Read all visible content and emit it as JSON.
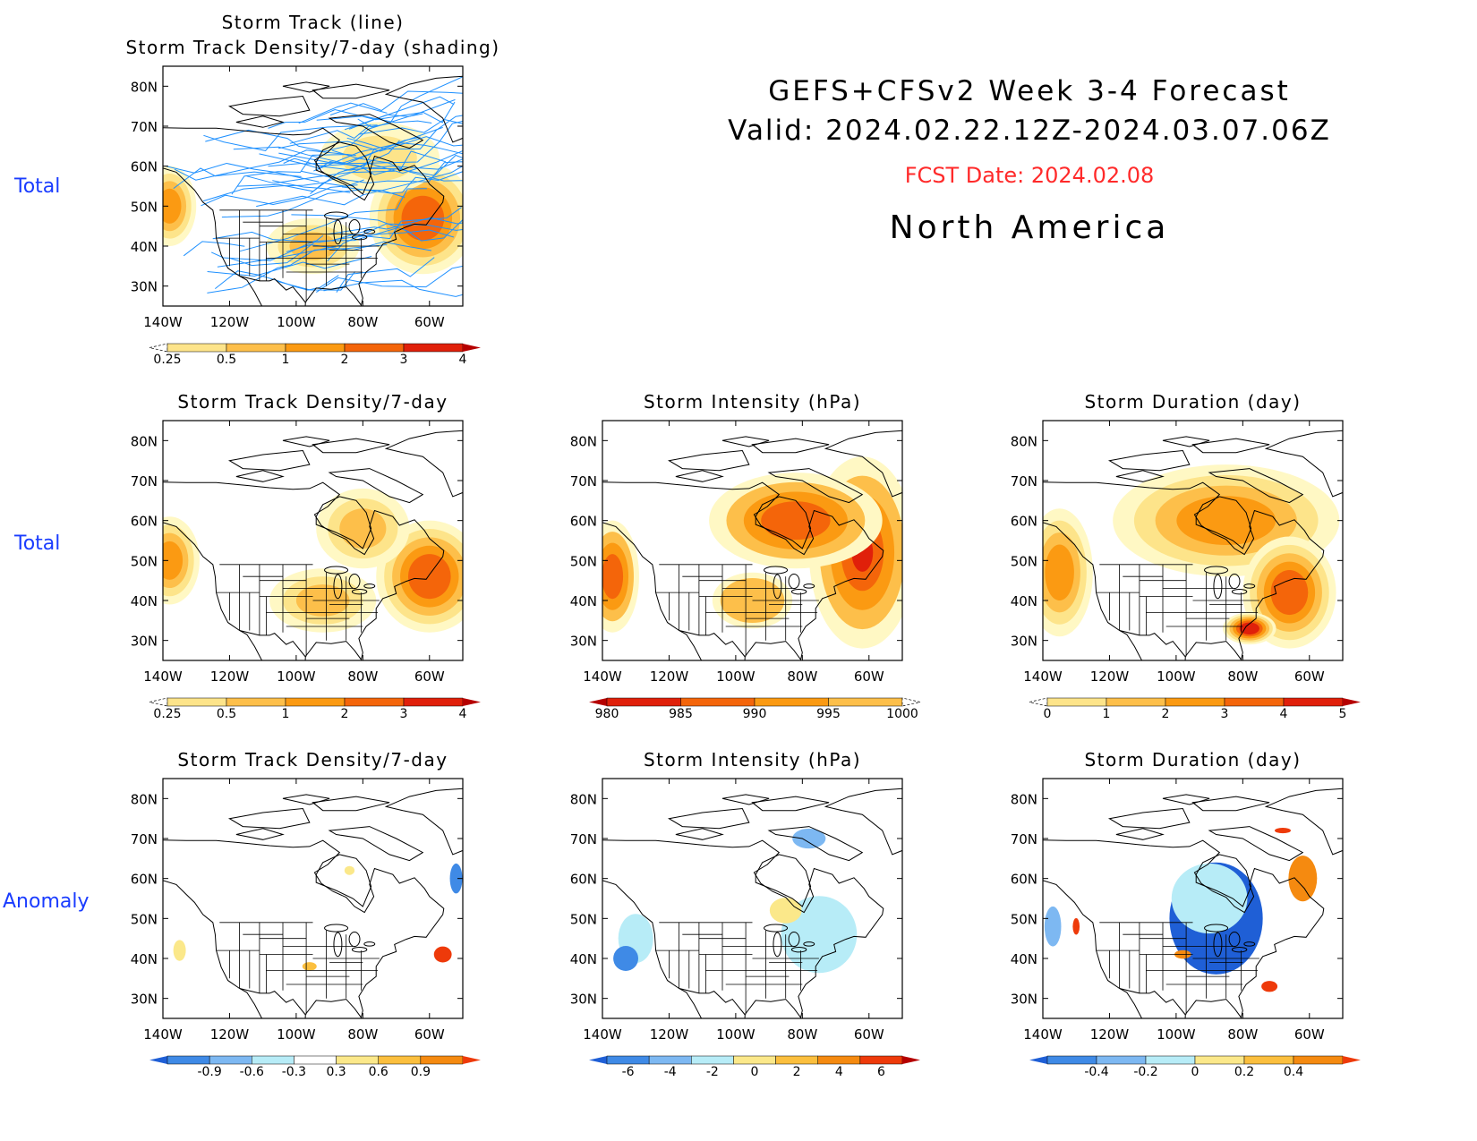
{
  "header": {
    "title": "GEFS+CFSv2 Week 3-4 Forecast",
    "valid": "Valid: 2024.02.22.12Z-2024.03.07.06Z",
    "fcst_date": "FCST Date: 2024.02.08",
    "region": "North America"
  },
  "row_labels": [
    "Total",
    "Total",
    "Anomaly"
  ],
  "colors": {
    "row_label": "#1a3cff",
    "fcst_date": "#ff2a2a",
    "track_line": "#1e90ff",
    "land_outline": "#000000"
  },
  "map_axes": {
    "lon_ticks": [
      "140W",
      "120W",
      "100W",
      "80W",
      "60W"
    ],
    "lat_ticks": [
      "80N",
      "70N",
      "60N",
      "50N",
      "40N",
      "30N"
    ],
    "lon_range": [
      -140,
      -50
    ],
    "lat_range": [
      25,
      85
    ]
  },
  "chart_data": [
    {
      "type": "heatmap",
      "id": "total_tracks",
      "title_lines": [
        "Storm Track (line)",
        "Storm Track Density/7-day (shading)"
      ],
      "overlay": "storm track lines",
      "colorbar": {
        "labels": [
          "0.25",
          "0.5",
          "1",
          "2",
          "3",
          "4"
        ],
        "colors": [
          "#fff8c4",
          "#fde48a",
          "#fdbf4a",
          "#fb9a12",
          "#f4650a",
          "#e0200a",
          "#b50000"
        ],
        "dashed_low": true
      },
      "blobs": [
        {
          "lon": -62,
          "lat": 47,
          "lr": 16,
          "ar": 14,
          "cls": 4
        },
        {
          "lon": -95,
          "lat": 40,
          "lr": 14,
          "ar": 7,
          "cls": 2
        },
        {
          "lon": -138,
          "lat": 50,
          "lr": 8,
          "ar": 10,
          "cls": 3
        },
        {
          "lon": -75,
          "lat": 62,
          "lr": 18,
          "ar": 9,
          "cls": 1
        }
      ]
    },
    {
      "type": "heatmap",
      "id": "total_density",
      "title_lines": [
        "Storm Track Density/7-day"
      ],
      "colorbar": {
        "labels": [
          "0.25",
          "0.5",
          "1",
          "2",
          "3",
          "4"
        ],
        "colors": [
          "#fff8c4",
          "#fde48a",
          "#fdbf4a",
          "#fb9a12",
          "#f4650a",
          "#e0200a",
          "#b50000"
        ],
        "dashed_low": true
      },
      "blobs": [
        {
          "lon": -60,
          "lat": 46,
          "lr": 16,
          "ar": 14,
          "cls": 4
        },
        {
          "lon": -92,
          "lat": 40,
          "lr": 16,
          "ar": 8,
          "cls": 2
        },
        {
          "lon": -138,
          "lat": 50,
          "lr": 9,
          "ar": 11,
          "cls": 3
        },
        {
          "lon": -80,
          "lat": 58,
          "lr": 14,
          "ar": 10,
          "cls": 2
        }
      ]
    },
    {
      "type": "heatmap",
      "id": "total_intensity",
      "title_lines": [
        "Storm Intensity (hPa)"
      ],
      "colorbar": {
        "labels": [
          "980",
          "985",
          "990",
          "995",
          "1000"
        ],
        "colors": [
          "#b50000",
          "#e0200a",
          "#f4650a",
          "#fb9a12",
          "#fdbf4a",
          "#fff8c4"
        ],
        "dashed_high": true
      },
      "blobs": [
        {
          "lon": -62,
          "lat": 52,
          "lr": 16,
          "ar": 24,
          "cls": 4
        },
        {
          "lon": -82,
          "lat": 60,
          "lr": 26,
          "ar": 12,
          "cls": 3
        },
        {
          "lon": -137,
          "lat": 46,
          "lr": 8,
          "ar": 14,
          "cls": 3
        },
        {
          "lon": -95,
          "lat": 40,
          "lr": 12,
          "ar": 7,
          "cls": 1
        }
      ]
    },
    {
      "type": "heatmap",
      "id": "total_duration",
      "title_lines": [
        "Storm Duration (day)"
      ],
      "colorbar": {
        "labels": [
          "0",
          "1",
          "2",
          "3",
          "4",
          "5"
        ],
        "colors": [
          "#fff8c4",
          "#fde48a",
          "#fdbf4a",
          "#fb9a12",
          "#f4650a",
          "#e0200a",
          "#b50000"
        ],
        "dashed_low": true
      },
      "blobs": [
        {
          "lon": -85,
          "lat": 60,
          "lr": 34,
          "ar": 14,
          "cls": 3
        },
        {
          "lon": -135,
          "lat": 47,
          "lr": 10,
          "ar": 16,
          "cls": 3
        },
        {
          "lon": -66,
          "lat": 42,
          "lr": 14,
          "ar": 14,
          "cls": 4
        },
        {
          "lon": -78,
          "lat": 33,
          "lr": 8,
          "ar": 4,
          "cls": 5
        }
      ]
    },
    {
      "type": "heatmap",
      "id": "anom_density",
      "title_lines": [
        "Storm Track Density/7-day"
      ],
      "colorbar": {
        "labels": [
          "-0.9",
          "-0.6",
          "-0.3",
          "0.3",
          "0.6",
          "0.9"
        ],
        "colors": [
          "#1f5fd6",
          "#3f8ae6",
          "#7db8f2",
          "#b7ecf7",
          "#ffffff",
          "#fbe88a",
          "#fbbf3e",
          "#f58a10",
          "#ee3a0a"
        ]
      },
      "blobs": [
        {
          "lon": -56,
          "lat": 41,
          "lr": 8,
          "ar": 6,
          "cls": 8
        },
        {
          "lon": -135,
          "lat": 42,
          "lr": 5,
          "ar": 7,
          "cls": 5
        },
        {
          "lon": -96,
          "lat": 38,
          "lr": 6,
          "ar": 3,
          "cls": 6
        },
        {
          "lon": -52,
          "lat": 60,
          "lr": 3,
          "ar": 6,
          "cls": 1
        },
        {
          "lon": -84,
          "lat": 62,
          "lr": 4,
          "ar": 3,
          "cls": 5
        }
      ]
    },
    {
      "type": "heatmap",
      "id": "anom_intensity",
      "title_lines": [
        "Storm Intensity (hPa)"
      ],
      "colorbar": {
        "labels": [
          "-6",
          "-4",
          "-2",
          "0",
          "2",
          "4",
          "6"
        ],
        "colors": [
          "#1f5fd6",
          "#3f8ae6",
          "#7db8f2",
          "#b7ecf7",
          "#fbe88a",
          "#fbbf3e",
          "#f58a10",
          "#ee3a0a",
          "#b50000"
        ]
      },
      "blobs": [
        {
          "lon": -75,
          "lat": 46,
          "lr": 26,
          "ar": 22,
          "cls": 3
        },
        {
          "lon": -130,
          "lat": 45,
          "lr": 12,
          "ar": 14,
          "cls": 3
        },
        {
          "lon": -133,
          "lat": 40,
          "lr": 6,
          "ar": 5,
          "cls": 1
        },
        {
          "lon": -85,
          "lat": 52,
          "lr": 12,
          "ar": 8,
          "cls": 4
        },
        {
          "lon": -78,
          "lat": 70,
          "lr": 10,
          "ar": 5,
          "cls": 2
        }
      ]
    },
    {
      "type": "heatmap",
      "id": "anom_duration",
      "title_lines": [
        "Storm Duration (day)"
      ],
      "colorbar": {
        "labels": [
          "-0.4",
          "-0.2",
          "0",
          "0.2",
          "0.4"
        ],
        "colors": [
          "#1f5fd6",
          "#3f8ae6",
          "#7db8f2",
          "#b7ecf7",
          "#fbe88a",
          "#fbbf3e",
          "#f58a10",
          "#ee3a0a"
        ]
      },
      "blobs": [
        {
          "lon": -88,
          "lat": 50,
          "lr": 14,
          "ar": 14,
          "cls": 0
        },
        {
          "lon": -90,
          "lat": 55,
          "lr": 26,
          "ar": 20,
          "cls": 3
        },
        {
          "lon": -62,
          "lat": 60,
          "lr": 12,
          "ar": 16,
          "cls": 6
        },
        {
          "lon": -130,
          "lat": 48,
          "lr": 3,
          "ar": 6,
          "cls": 7
        },
        {
          "lon": -72,
          "lat": 33,
          "lr": 7,
          "ar": 4,
          "cls": 7
        },
        {
          "lon": -98,
          "lat": 41,
          "lr": 7,
          "ar": 3,
          "cls": 6
        },
        {
          "lon": -137,
          "lat": 48,
          "lr": 5,
          "ar": 10,
          "cls": 2
        },
        {
          "lon": -68,
          "lat": 72,
          "lr": 7,
          "ar": 2,
          "cls": 7
        }
      ]
    }
  ]
}
